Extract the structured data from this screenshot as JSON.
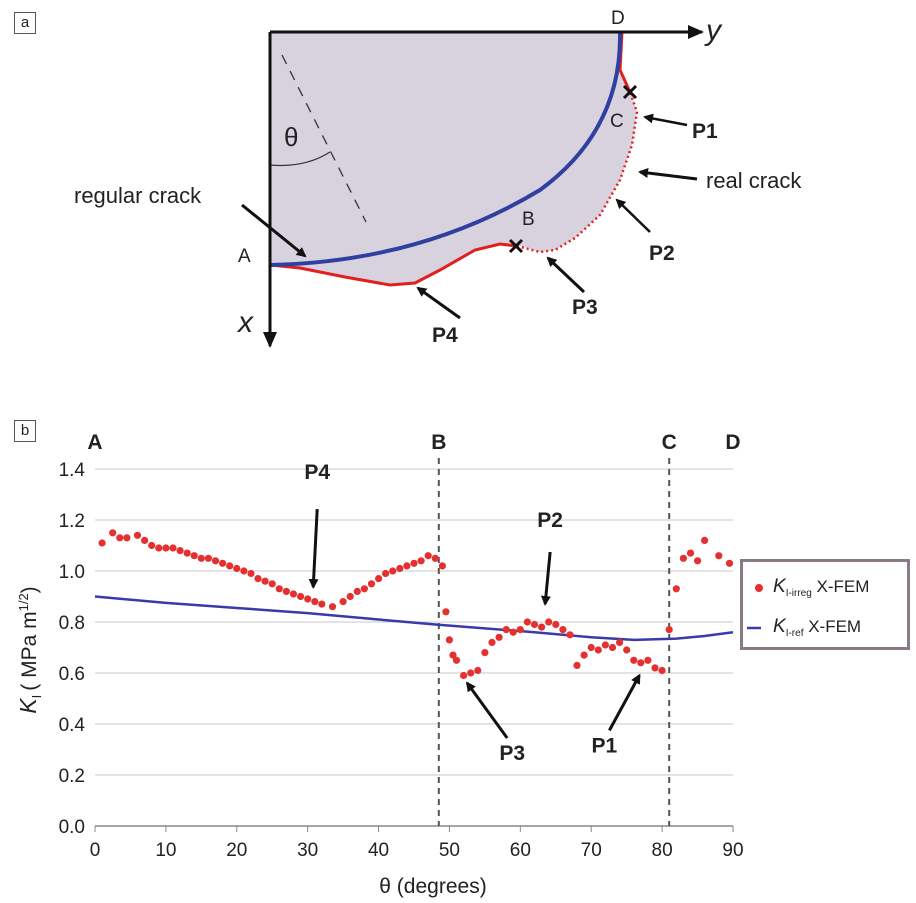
{
  "panels": {
    "a": "a",
    "b": "b"
  },
  "schematic": {
    "points": {
      "A": "A",
      "B": "B",
      "C": "C",
      "D": "D"
    },
    "axis_x": "x",
    "axis_y": "y",
    "theta": "θ",
    "labels": {
      "regular_crack": "regular crack",
      "real_crack": "real crack",
      "P1": "P1",
      "P2": "P2",
      "P3": "P3",
      "P4": "P4"
    },
    "colors": {
      "regular_crack": "#3040a0",
      "real_crack": "#e02020",
      "region_fill": "#d8d2de"
    }
  },
  "chart_data": {
    "type": "scatter",
    "xlabel": "θ (degrees)",
    "ylabel_main": "K",
    "ylabel_sub": "I",
    "ylabel_rest": "( MPa m",
    "ylabel_sup": "1/2",
    "ylabel_end": ")",
    "xlim": [
      0,
      90
    ],
    "ylim": [
      0,
      1.4
    ],
    "xticks": [
      0,
      10,
      20,
      30,
      40,
      50,
      60,
      70,
      80,
      90
    ],
    "yticks": [
      0.0,
      0.2,
      0.4,
      0.6,
      0.8,
      1.0,
      1.2,
      1.4
    ],
    "ytick_labels": [
      "0.0",
      "0.2",
      "0.4",
      "0.6",
      "0.8",
      "1.0",
      "1.2",
      "1.4"
    ],
    "grid": "horizontal",
    "legend_position": "right",
    "markers": [
      {
        "label": "A",
        "x": 0,
        "line": false
      },
      {
        "label": "B",
        "x": 48.5,
        "line": true
      },
      {
        "label": "C",
        "x": 81,
        "line": true
      },
      {
        "label": "D",
        "x": 90,
        "line": false
      }
    ],
    "annotations": [
      {
        "label": "P4",
        "x": 30.5,
        "y": 0.89
      },
      {
        "label": "P2",
        "x": 63.5,
        "y": 0.8
      },
      {
        "label": "P3",
        "x": 52.5,
        "y": 0.6
      },
      {
        "label": "P1",
        "x": 77.5,
        "y": 0.63
      }
    ],
    "series": [
      {
        "name_main": "K",
        "name_sub": "I-irreg",
        "name_rest": " X-FEM",
        "kind": "scatter",
        "color": "#e53030",
        "x": [
          1.0,
          2.5,
          3.5,
          4.5,
          6.0,
          7.0,
          8.0,
          9.0,
          10.0,
          11.0,
          12.0,
          13.0,
          14.0,
          15.0,
          16.0,
          17.0,
          18.0,
          19.0,
          20.0,
          21.0,
          22.0,
          23.0,
          24.0,
          25.0,
          26.0,
          27.0,
          28.0,
          29.0,
          30.0,
          31.0,
          32.0,
          33.5,
          35.0,
          36.0,
          37.0,
          38.0,
          39.0,
          40.0,
          41.0,
          42.0,
          43.0,
          44.0,
          45.0,
          46.0,
          47.0,
          48.0,
          49.0,
          49.5,
          50.0,
          50.5,
          51.0,
          52.0,
          53.0,
          54.0,
          55.0,
          56.0,
          57.0,
          58.0,
          59.0,
          60.0,
          61.0,
          62.0,
          63.0,
          64.0,
          65.0,
          66.0,
          67.0,
          68.0,
          69.0,
          70.0,
          71.0,
          72.0,
          73.0,
          74.0,
          75.0,
          76.0,
          77.0,
          78.0,
          79.0,
          80.0,
          81.0,
          82.0,
          83.0,
          84.0,
          85.0,
          86.0,
          88.0,
          89.5
        ],
        "y": [
          1.11,
          1.15,
          1.13,
          1.13,
          1.14,
          1.12,
          1.1,
          1.09,
          1.09,
          1.09,
          1.08,
          1.07,
          1.06,
          1.05,
          1.05,
          1.04,
          1.03,
          1.02,
          1.01,
          1.0,
          0.99,
          0.97,
          0.96,
          0.95,
          0.93,
          0.92,
          0.91,
          0.9,
          0.89,
          0.88,
          0.87,
          0.86,
          0.88,
          0.9,
          0.92,
          0.93,
          0.95,
          0.97,
          0.99,
          1.0,
          1.01,
          1.02,
          1.03,
          1.04,
          1.06,
          1.05,
          1.02,
          0.84,
          0.73,
          0.67,
          0.65,
          0.59,
          0.6,
          0.61,
          0.68,
          0.72,
          0.74,
          0.77,
          0.76,
          0.77,
          0.8,
          0.79,
          0.78,
          0.8,
          0.79,
          0.77,
          0.75,
          0.63,
          0.67,
          0.7,
          0.69,
          0.71,
          0.7,
          0.72,
          0.69,
          0.65,
          0.64,
          0.65,
          0.62,
          0.61,
          0.77,
          0.93,
          1.05,
          1.07,
          1.04,
          1.12,
          1.06,
          1.03
        ]
      },
      {
        "name_main": "K",
        "name_sub": "I-ref",
        "name_rest": " X-FEM",
        "kind": "line",
        "color": "#3a3aa8",
        "x": [
          0,
          10,
          20,
          30,
          40,
          48,
          55,
          62,
          70,
          76,
          82,
          86,
          90
        ],
        "y": [
          0.9,
          0.875,
          0.855,
          0.835,
          0.81,
          0.79,
          0.775,
          0.76,
          0.74,
          0.73,
          0.735,
          0.745,
          0.76
        ]
      }
    ]
  }
}
